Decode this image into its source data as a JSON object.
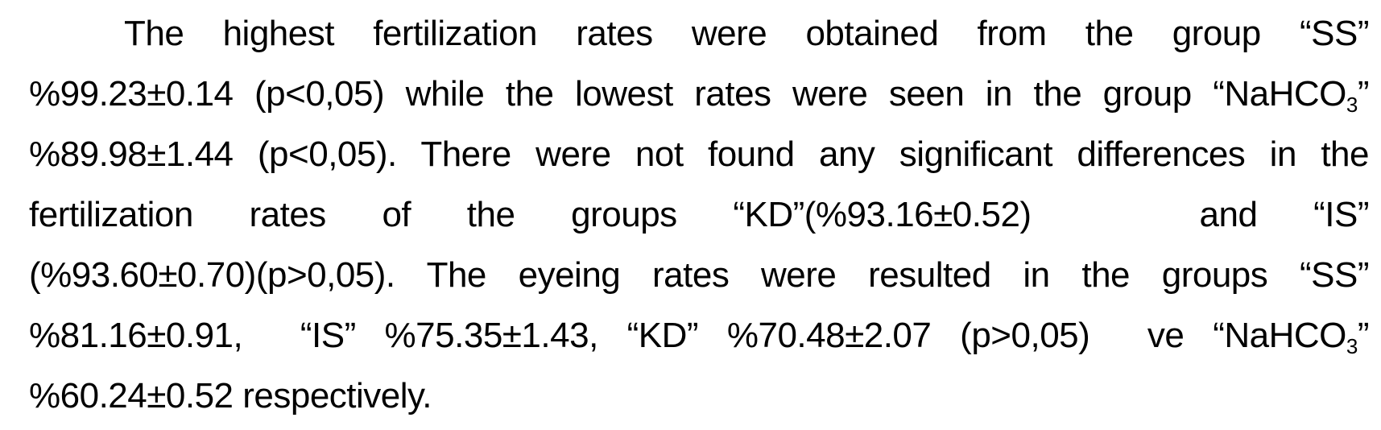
{
  "paragraph": {
    "lines": [
      [
        "The highest fertilization rates were obtained from the group “SS”"
      ],
      [
        "%99.23±0.14 (p<0,05) while the lowest rates were seen in the group “NaHCO",
        "3",
        "”"
      ],
      [
        "%89.98±1.44 (p<0,05). There were not found any significant differences in the"
      ],
      [
        "fertilization rates of the groups “KD”(%93.16±0.52)   and “IS”"
      ],
      [
        "(%93.60±0.70)(p>0,05). The eyeing rates were resulted in the groups “SS”"
      ],
      [
        "%81.16±0.91,  “IS” %75.35±1.43, “KD” %70.48±2.07 (p>0,05)  ve “NaHCO",
        "3",
        "”"
      ],
      [
        "%60.24±0.52 respectively."
      ]
    ]
  }
}
